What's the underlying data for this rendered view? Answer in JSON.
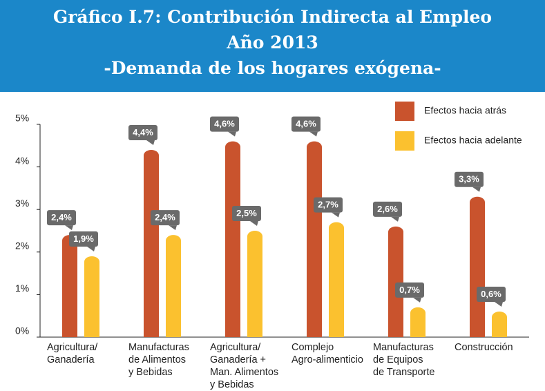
{
  "chart_data": {
    "type": "bar",
    "title_lines": [
      "Gráfico I.7: Contribución Indirecta al Empleo",
      "Año 2013",
      "-Demanda de los hogares exógena-"
    ],
    "categories": [
      "Agricultura/\nGanadería",
      "Manufacturas\nde Alimentos\ny Bebidas",
      "Agricultura/\nGanadería +\nMan. Alimentos\ny Bebidas",
      "Complejo\nAgro-alimenticio",
      "Manufacturas\nde Equipos\nde Transporte",
      "Construcción"
    ],
    "series": [
      {
        "name": "Efectos hacia atrás",
        "color": "#c9532d",
        "values": [
          2.4,
          4.4,
          4.6,
          4.6,
          2.6,
          3.3
        ],
        "value_labels": [
          "2,4%",
          "4,4%",
          "4,6%",
          "4,6%",
          "2,6%",
          "3,3%"
        ]
      },
      {
        "name": "Efectos hacia adelante",
        "color": "#fbc12f",
        "values": [
          1.9,
          2.4,
          2.5,
          2.7,
          0.7,
          0.6
        ],
        "value_labels": [
          "1,9%",
          "2,4%",
          "2,5%",
          "2,7%",
          "0,7%",
          "0,6%"
        ]
      }
    ],
    "ylim": [
      0,
      5
    ],
    "yticks": [
      {
        "value": 0,
        "label": "0%"
      },
      {
        "value": 1,
        "label": "1%"
      },
      {
        "value": 2,
        "label": "2%"
      },
      {
        "value": 3,
        "label": "3%"
      },
      {
        "value": 4,
        "label": "4%"
      },
      {
        "value": 5,
        "label": "5%"
      }
    ],
    "legend": "top-right"
  }
}
